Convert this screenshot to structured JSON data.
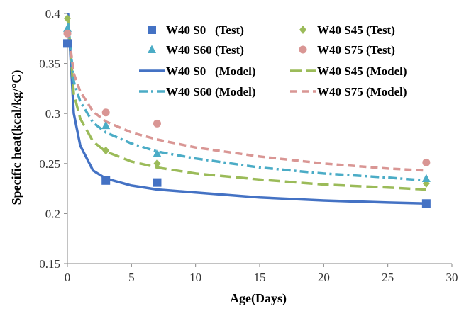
{
  "chart_data": {
    "type": "scatter",
    "title": "",
    "xlabel": "Age(Days)",
    "ylabel": "Specific heat(kcal/kg/°C)",
    "xlim": [
      0,
      30
    ],
    "ylim": [
      0.15,
      0.4
    ],
    "xticks": [
      "0",
      "5",
      "10",
      "15",
      "20",
      "25",
      "30"
    ],
    "yticks": [
      "0.15",
      "0.2",
      "0.25",
      "0.3",
      "0.35",
      "0.4"
    ],
    "grid": false,
    "legend_position": "top-right",
    "series": [
      {
        "name": "W40 S0   (Test)",
        "kind": "test",
        "marker": "square",
        "color": "#4472C4",
        "points": [
          [
            0,
            0.37
          ],
          [
            3,
            0.233
          ],
          [
            7,
            0.231
          ],
          [
            28,
            0.21
          ]
        ]
      },
      {
        "name": "W40 S45 (Test)",
        "kind": "test",
        "marker": "diamond",
        "color": "#9BBB59",
        "points": [
          [
            0,
            0.395
          ],
          [
            3,
            0.263
          ],
          [
            7,
            0.25
          ],
          [
            28,
            0.23
          ]
        ]
      },
      {
        "name": "W40 S60 (Test)",
        "kind": "test",
        "marker": "triangle",
        "color": "#4BACC6",
        "points": [
          [
            0,
            0.385
          ],
          [
            3,
            0.288
          ],
          [
            7,
            0.26
          ],
          [
            28,
            0.235
          ]
        ]
      },
      {
        "name": "W40 S75 (Test)",
        "kind": "test",
        "marker": "circle",
        "color": "#D99694",
        "points": [
          [
            0,
            0.38
          ],
          [
            3,
            0.301
          ],
          [
            7,
            0.29
          ],
          [
            28,
            0.251
          ]
        ]
      },
      {
        "name": "W40 S0   (Model)",
        "kind": "model",
        "dash": "solid",
        "color": "#4472C4",
        "points": [
          [
            0.05,
            0.4
          ],
          [
            0.5,
            0.3
          ],
          [
            1,
            0.268
          ],
          [
            2,
            0.243
          ],
          [
            3,
            0.235
          ],
          [
            5,
            0.228
          ],
          [
            7,
            0.224
          ],
          [
            10,
            0.221
          ],
          [
            15,
            0.216
          ],
          [
            20,
            0.213
          ],
          [
            25,
            0.211
          ],
          [
            28,
            0.21
          ]
        ]
      },
      {
        "name": "W40 S45 (Model)",
        "kind": "model",
        "dash": "long-dash",
        "color": "#9BBB59",
        "points": [
          [
            0.05,
            0.395
          ],
          [
            0.5,
            0.32
          ],
          [
            1,
            0.295
          ],
          [
            2,
            0.272
          ],
          [
            3,
            0.262
          ],
          [
            5,
            0.252
          ],
          [
            7,
            0.246
          ],
          [
            10,
            0.24
          ],
          [
            15,
            0.234
          ],
          [
            20,
            0.229
          ],
          [
            25,
            0.226
          ],
          [
            28,
            0.224
          ]
        ]
      },
      {
        "name": "W40 S60 (Model)",
        "kind": "model",
        "dash": "dash-dot",
        "color": "#4BACC6",
        "points": [
          [
            0.05,
            0.39
          ],
          [
            0.5,
            0.332
          ],
          [
            1,
            0.312
          ],
          [
            2,
            0.291
          ],
          [
            3,
            0.281
          ],
          [
            5,
            0.27
          ],
          [
            7,
            0.262
          ],
          [
            10,
            0.255
          ],
          [
            15,
            0.246
          ],
          [
            20,
            0.24
          ],
          [
            25,
            0.236
          ],
          [
            28,
            0.233
          ]
        ]
      },
      {
        "name": "W40 S75 (Model)",
        "kind": "model",
        "dash": "dash",
        "color": "#D99694",
        "points": [
          [
            0.05,
            0.385
          ],
          [
            0.5,
            0.34
          ],
          [
            1,
            0.322
          ],
          [
            2,
            0.302
          ],
          [
            3,
            0.292
          ],
          [
            5,
            0.281
          ],
          [
            7,
            0.274
          ],
          [
            10,
            0.266
          ],
          [
            15,
            0.257
          ],
          [
            20,
            0.25
          ],
          [
            25,
            0.245
          ],
          [
            28,
            0.243
          ]
        ]
      }
    ]
  }
}
